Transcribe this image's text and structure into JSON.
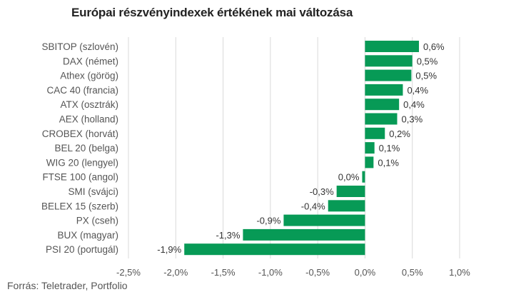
{
  "chart_data": {
    "type": "bar",
    "orientation": "horizontal",
    "title": "Európai részvényindexek értékének mai változása",
    "source": "Forrás: Teletrader, Portfolio",
    "categories": [
      "SBITOP (szlovén)",
      "DAX (német)",
      "Athex (görög)",
      "CAC 40 (francia)",
      "ATX (osztrák)",
      "AEX (holland)",
      "CROBEX (horvát)",
      "BEL 20 (belga)",
      "WIG 20 (lengyel)",
      "FTSE 100 (angol)",
      "SMI (svájci)",
      "BELEX 15 (szerb)",
      "PX (cseh)",
      "BUX (magyar)",
      "PSI 20 (portugál)"
    ],
    "values": [
      0.57,
      0.5,
      0.49,
      0.4,
      0.36,
      0.34,
      0.21,
      0.1,
      0.09,
      -0.03,
      -0.3,
      -0.39,
      -0.86,
      -1.29,
      -1.91
    ],
    "value_labels": [
      "0,6%",
      "0,5%",
      "0,5%",
      "0,4%",
      "0,4%",
      "0,3%",
      "0,2%",
      "0,1%",
      "0,1%",
      "0,0%",
      "-0,3%",
      "-0,4%",
      "-0,9%",
      "-1,3%",
      "-1,9%"
    ],
    "xlim": [
      -2.5,
      1.0
    ],
    "x_ticks": [
      -2.5,
      -2.0,
      -1.5,
      -1.0,
      -0.5,
      0.0,
      0.5,
      1.0
    ],
    "x_tick_labels": [
      "-2,5%",
      "-2,0%",
      "-1,5%",
      "-1,0%",
      "-0,5%",
      "0,0%",
      "0,5%",
      "1,0%"
    ],
    "grid": true,
    "bar_color": "#079a56",
    "gridline_color": "#d9d9d9"
  }
}
